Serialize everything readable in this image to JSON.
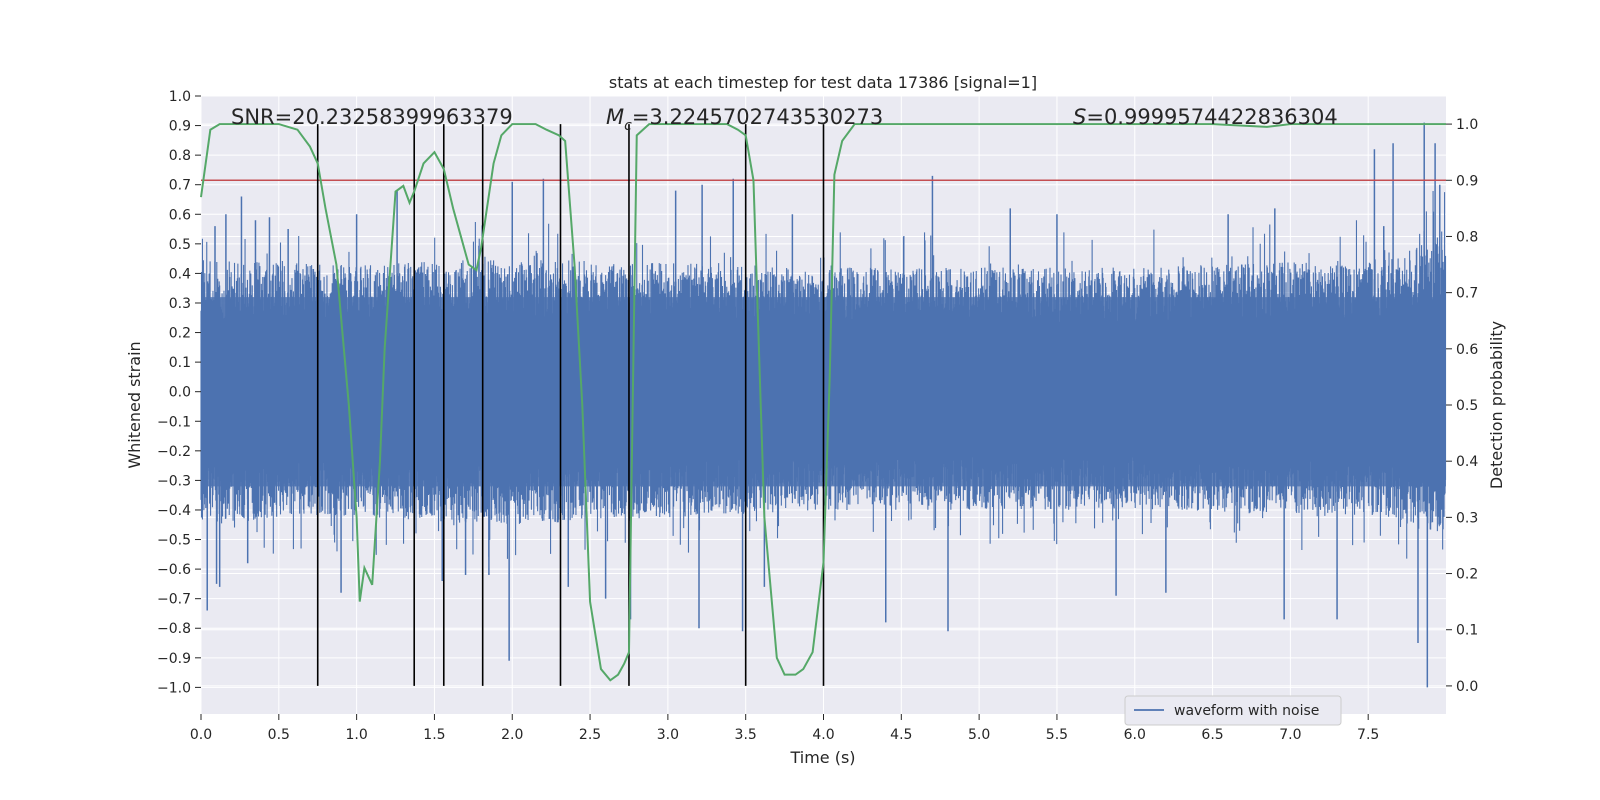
{
  "chart_data": {
    "type": "line",
    "title": "stats at each timestep for test data 17386 [signal=1]",
    "xlabel": "Time (s)",
    "ylabel_left": "Whitened strain",
    "ylabel_right": "Detection probability",
    "xlim": [
      0.0,
      8.0
    ],
    "ylim_left": [
      -1.09,
      1.0
    ],
    "ylim_right": [
      -0.05,
      1.05
    ],
    "x_ticks": [
      "0.0",
      "0.5",
      "1.0",
      "1.5",
      "2.0",
      "2.5",
      "3.0",
      "3.5",
      "4.0",
      "4.5",
      "5.0",
      "5.5",
      "6.0",
      "6.5",
      "7.0",
      "7.5"
    ],
    "y_left_ticks": [
      "1.0",
      "0.9",
      "0.8",
      "0.7",
      "0.6",
      "0.5",
      "0.4",
      "0.3",
      "0.2",
      "0.1",
      "0.0",
      "−0.1",
      "−0.2",
      "−0.3",
      "−0.4",
      "−0.5",
      "−0.6",
      "−0.7",
      "−0.8",
      "−0.9",
      "−1.0"
    ],
    "y_right_ticks": [
      "1.0",
      "0.9",
      "0.8",
      "0.7",
      "0.6",
      "0.5",
      "0.4",
      "0.3",
      "0.2",
      "0.1",
      "0.0"
    ],
    "annotations": {
      "snr": "SNR=20.23258399963379",
      "mc_symbol": "M",
      "mc_subscript": "c",
      "mc_value": "=3.2245702743530273",
      "s_symbol": "S",
      "s_value": "=0.9999574422836304"
    },
    "threshold": {
      "value": 0.9,
      "axis": "right",
      "color": "#c44e52"
    },
    "vertical_lines": [
      0.75,
      1.37,
      1.56,
      1.81,
      2.31,
      2.75,
      3.5,
      4.0
    ],
    "series": [
      {
        "name": "waveform with noise",
        "color": "#4c72b0",
        "kind": "noise",
        "band": [
          {
            "t": 0.0,
            "lo": -0.45,
            "hi": 0.45
          },
          {
            "t": 0.8,
            "lo": -0.42,
            "hi": 0.43
          },
          {
            "t": 2.0,
            "lo": -0.45,
            "hi": 0.45
          },
          {
            "t": 4.0,
            "lo": -0.4,
            "hi": 0.42
          },
          {
            "t": 6.0,
            "lo": -0.4,
            "hi": 0.42
          },
          {
            "t": 7.6,
            "lo": -0.42,
            "hi": 0.45
          },
          {
            "t": 8.0,
            "lo": -0.5,
            "hi": 0.55
          }
        ],
        "peaks": [
          {
            "t": 0.04,
            "y": -0.74
          },
          {
            "t": 0.09,
            "y": 0.56
          },
          {
            "t": 0.1,
            "y": -0.65
          },
          {
            "t": 0.12,
            "y": -0.66
          },
          {
            "t": 0.16,
            "y": 0.6
          },
          {
            "t": 0.26,
            "y": 0.66
          },
          {
            "t": 0.3,
            "y": -0.58
          },
          {
            "t": 0.35,
            "y": 0.58
          },
          {
            "t": 0.44,
            "y": 0.59
          },
          {
            "t": 0.56,
            "y": 0.55
          },
          {
            "t": 0.9,
            "y": -0.68
          },
          {
            "t": 1.0,
            "y": 0.6
          },
          {
            "t": 1.26,
            "y": 0.68
          },
          {
            "t": 1.55,
            "y": -0.64
          },
          {
            "t": 1.7,
            "y": -0.62
          },
          {
            "t": 1.85,
            "y": -0.62
          },
          {
            "t": 1.98,
            "y": -0.91
          },
          {
            "t": 2.0,
            "y": 0.71
          },
          {
            "t": 2.2,
            "y": 0.72
          },
          {
            "t": 2.36,
            "y": -0.66
          },
          {
            "t": 2.6,
            "y": -0.7
          },
          {
            "t": 2.76,
            "y": -0.77
          },
          {
            "t": 3.05,
            "y": 0.68
          },
          {
            "t": 3.2,
            "y": -0.8
          },
          {
            "t": 3.22,
            "y": 0.7
          },
          {
            "t": 3.42,
            "y": 0.72
          },
          {
            "t": 3.48,
            "y": -0.81
          },
          {
            "t": 3.62,
            "y": -0.66
          },
          {
            "t": 3.8,
            "y": 0.6
          },
          {
            "t": 4.4,
            "y": -0.78
          },
          {
            "t": 4.7,
            "y": 0.73
          },
          {
            "t": 4.8,
            "y": -0.81
          },
          {
            "t": 5.2,
            "y": 0.62
          },
          {
            "t": 5.5,
            "y": 0.6
          },
          {
            "t": 5.88,
            "y": -0.69
          },
          {
            "t": 6.2,
            "y": -0.68
          },
          {
            "t": 6.6,
            "y": 0.6
          },
          {
            "t": 6.9,
            "y": 0.62
          },
          {
            "t": 6.96,
            "y": -0.77
          },
          {
            "t": 7.3,
            "y": -0.77
          },
          {
            "t": 7.54,
            "y": 0.82
          },
          {
            "t": 7.6,
            "y": 0.56
          },
          {
            "t": 7.66,
            "y": 0.84
          },
          {
            "t": 7.82,
            "y": -0.85
          },
          {
            "t": 7.86,
            "y": 0.91
          },
          {
            "t": 7.88,
            "y": -1.0
          },
          {
            "t": 7.93,
            "y": 0.84
          },
          {
            "t": 7.96,
            "y": 0.7
          }
        ]
      },
      {
        "name": "detection probability",
        "color": "#55a868",
        "axis": "right",
        "x": [
          0.0,
          0.06,
          0.12,
          0.3,
          0.5,
          0.62,
          0.7,
          0.75,
          0.8,
          0.87,
          0.95,
          1.0,
          1.02,
          1.05,
          1.1,
          1.15,
          1.18,
          1.25,
          1.3,
          1.34,
          1.37,
          1.43,
          1.5,
          1.56,
          1.62,
          1.67,
          1.72,
          1.77,
          1.8,
          1.88,
          1.93,
          2.0,
          2.07,
          2.15,
          2.22,
          2.3,
          2.34,
          2.4,
          2.45,
          2.5,
          2.57,
          2.63,
          2.68,
          2.72,
          2.75,
          2.8,
          2.88,
          3.0,
          3.2,
          3.38,
          3.45,
          3.5,
          3.55,
          3.62,
          3.7,
          3.75,
          3.82,
          3.87,
          3.93,
          4.0,
          4.04,
          4.07,
          4.12,
          4.2,
          4.5,
          5.0,
          5.5,
          6.0,
          6.5,
          6.85,
          7.0,
          7.5,
          8.0
        ],
        "values": [
          0.87,
          0.99,
          1.0,
          1.0,
          1.0,
          0.99,
          0.96,
          0.93,
          0.85,
          0.75,
          0.5,
          0.3,
          0.15,
          0.21,
          0.18,
          0.4,
          0.6,
          0.88,
          0.89,
          0.86,
          0.88,
          0.93,
          0.95,
          0.92,
          0.85,
          0.8,
          0.75,
          0.74,
          0.78,
          0.93,
          0.98,
          1.0,
          1.0,
          1.0,
          0.99,
          0.98,
          0.97,
          0.75,
          0.5,
          0.15,
          0.03,
          0.01,
          0.02,
          0.04,
          0.06,
          0.98,
          1.0,
          1.0,
          1.0,
          1.0,
          0.99,
          0.98,
          0.9,
          0.3,
          0.05,
          0.02,
          0.02,
          0.03,
          0.06,
          0.22,
          0.55,
          0.91,
          0.97,
          1.0,
          1.0,
          1.0,
          1.0,
          1.0,
          1.0,
          0.995,
          1.0,
          1.0,
          1.0
        ]
      }
    ],
    "legend": {
      "position": "lower-center-right",
      "entries": [
        "waveform with noise"
      ]
    }
  }
}
